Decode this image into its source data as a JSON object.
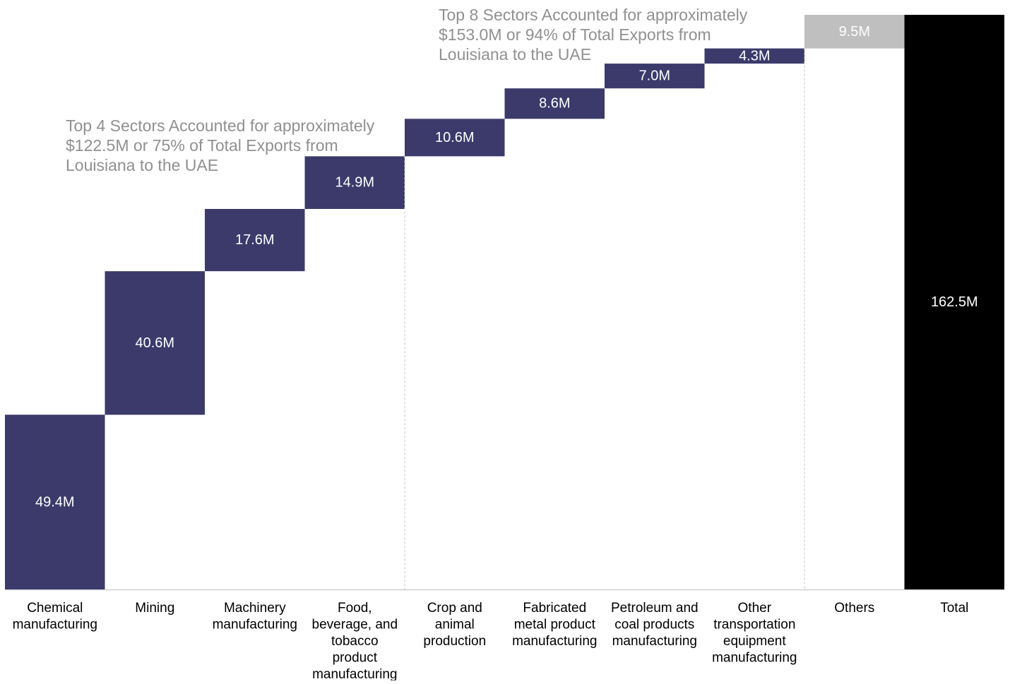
{
  "chart_data": {
    "type": "waterfall",
    "categories": [
      [
        "Chemical",
        "manufacturing"
      ],
      [
        "Mining"
      ],
      [
        "Machinery",
        "manufacturing"
      ],
      [
        "Food,",
        "beverage, and",
        "tobacco",
        "product",
        "manufacturing"
      ],
      [
        "Crop and",
        "animal",
        "production"
      ],
      [
        "Fabricated",
        "metal product",
        "manufacturing"
      ],
      [
        "Petroleum and",
        "coal products",
        "manufacturing"
      ],
      [
        "Other",
        "transportation",
        "equipment",
        "manufacturing"
      ],
      [
        "Others"
      ],
      [
        "Total"
      ]
    ],
    "values": [
      49.4,
      40.6,
      17.6,
      14.9,
      10.6,
      8.6,
      7.0,
      4.3,
      9.5,
      162.5
    ],
    "value_labels": [
      "49.4M",
      "40.6M",
      "17.6M",
      "14.9M",
      "10.6M",
      "8.6M",
      "7.0M",
      "4.3M",
      "9.5M",
      "162.5M"
    ],
    "is_total": [
      false,
      false,
      false,
      false,
      false,
      false,
      false,
      false,
      false,
      true
    ],
    "ylim": [
      0,
      162.5
    ],
    "grid": false,
    "colors": {
      "sector_bar": "#3b3a6b",
      "others_bar": "#bfbfbf",
      "total_bar": "#000000",
      "bar_label": "#ffffff",
      "axis_label": "#000000",
      "annotation": "#909090",
      "divider": "#cccccc",
      "baseline": "#d0d0d0"
    },
    "annotations": [
      {
        "id": "top4",
        "lines": [
          "Top 4 Sectors Accounted for approximately",
          "$122.5M or 75% of Total Exports from",
          "Louisiana to the UAE"
        ]
      },
      {
        "id": "top8",
        "lines": [
          "Top 8 Sectors Accounted for approximately",
          "$153.0M or 94% of Total Exports from",
          "Louisiana to the UAE"
        ]
      }
    ],
    "dividers_after_category_index": [
      3,
      7
    ]
  }
}
